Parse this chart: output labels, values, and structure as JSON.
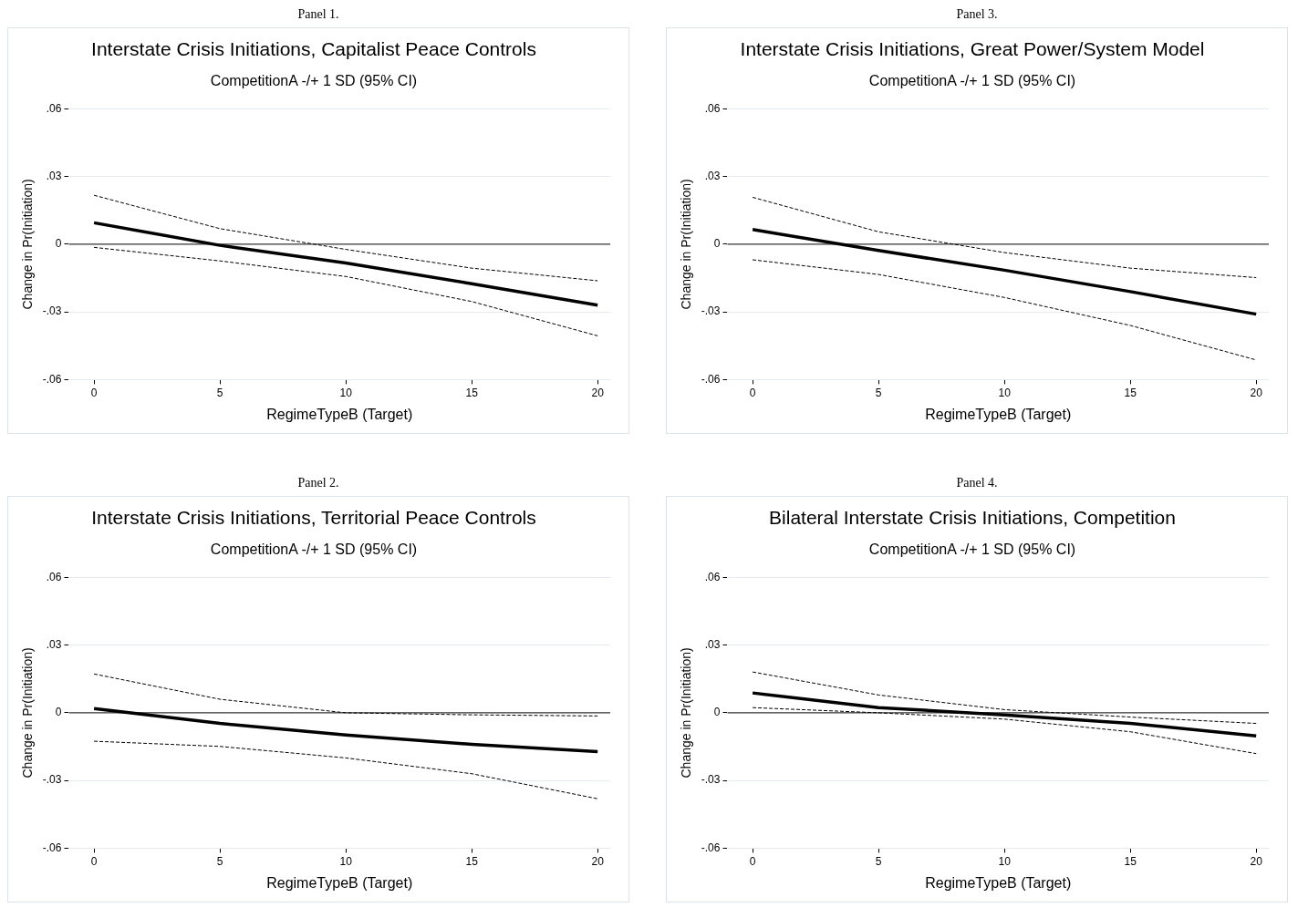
{
  "chart_data": [
    {
      "type": "line",
      "title": "Interstate Crisis Initiations, Capitalist Peace Controls",
      "subtitle": "CompetitionA -/+ 1 SD (95% CI)",
      "xlabel": "RegimeTypeB (Target)",
      "ylabel": "Change in Pr(Initiation)",
      "annotations": [
        "Panel 1."
      ],
      "x": [
        0,
        5,
        10,
        15,
        20
      ],
      "xlim": [
        -1,
        20.5
      ],
      "xticks": [
        0,
        5,
        10,
        15,
        20
      ],
      "ylim": [
        -0.06,
        0.06
      ],
      "yticks": [
        {
          "value": -0.06,
          "label": "-.06"
        },
        {
          "value": -0.03,
          "label": "-.03"
        },
        {
          "value": 0,
          "label": "0"
        },
        {
          "value": 0.03,
          "label": ".03"
        },
        {
          "value": 0.06,
          "label": ".06"
        }
      ],
      "grid": "y",
      "legend": false,
      "marker": "none",
      "ref_lines": [
        {
          "axis": "y",
          "value": 0,
          "color": "#000000"
        }
      ],
      "series": [
        {
          "color": "#000000",
          "line_style": "dashed",
          "values": [
            0.0217,
            0.0069,
            -0.0023,
            -0.0106,
            -0.0162
          ]
        },
        {
          "color": "#000000",
          "line_style": "solid",
          "values": [
            0.0095,
            -0.0005,
            -0.0083,
            -0.0175,
            -0.027
          ]
        },
        {
          "color": "#000000",
          "line_style": "dashed",
          "values": [
            -0.0014,
            -0.0074,
            -0.0143,
            -0.0254,
            -0.0406
          ]
        }
      ]
    },
    {
      "type": "line",
      "title": "Interstate Crisis Initiations, Great Power/System Model",
      "subtitle": "CompetitionA -/+ 1 SD (95% CI)",
      "xlabel": "RegimeTypeB (Target)",
      "ylabel": "Change in Pr(Initiation)",
      "annotations": [
        "Panel 3."
      ],
      "x": [
        0,
        5,
        10,
        15,
        20
      ],
      "xlim": [
        -1,
        20.5
      ],
      "xticks": [
        0,
        5,
        10,
        15,
        20
      ],
      "ylim": [
        -0.06,
        0.06
      ],
      "yticks": [
        {
          "value": -0.06,
          "label": "-.06"
        },
        {
          "value": -0.03,
          "label": "-.03"
        },
        {
          "value": 0,
          "label": "0"
        },
        {
          "value": 0.03,
          "label": ".03"
        },
        {
          "value": 0.06,
          "label": ".06"
        }
      ],
      "grid": "y",
      "legend": false,
      "marker": "none",
      "ref_lines": [
        {
          "axis": "y",
          "value": 0,
          "color": "#000000"
        }
      ],
      "series": [
        {
          "color": "#000000",
          "line_style": "dashed",
          "values": [
            0.0208,
            0.0055,
            -0.0037,
            -0.0106,
            -0.0148
          ]
        },
        {
          "color": "#000000",
          "line_style": "solid",
          "values": [
            0.0065,
            -0.0028,
            -0.0115,
            -0.021,
            -0.031
          ]
        },
        {
          "color": "#000000",
          "line_style": "dashed",
          "values": [
            -0.0069,
            -0.0134,
            -0.0236,
            -0.036,
            -0.0513
          ]
        }
      ]
    },
    {
      "type": "line",
      "title": "Interstate Crisis Initiations, Territorial Peace Controls",
      "subtitle": "CompetitionA -/+ 1 SD (95% CI)",
      "xlabel": "RegimeTypeB (Target)",
      "ylabel": "Change in Pr(Initiation)",
      "annotations": [
        "Panel 2."
      ],
      "x": [
        0,
        5,
        10,
        15,
        20
      ],
      "xlim": [
        -1,
        20.5
      ],
      "xticks": [
        0,
        5,
        10,
        15,
        20
      ],
      "ylim": [
        -0.06,
        0.06
      ],
      "yticks": [
        {
          "value": -0.06,
          "label": "-.06"
        },
        {
          "value": -0.03,
          "label": "-.03"
        },
        {
          "value": 0,
          "label": "0"
        },
        {
          "value": 0.03,
          "label": ".03"
        },
        {
          "value": 0.06,
          "label": ".06"
        }
      ],
      "grid": "y",
      "legend": false,
      "marker": "none",
      "ref_lines": [
        {
          "axis": "y",
          "value": 0,
          "color": "#000000"
        }
      ],
      "series": [
        {
          "color": "#000000",
          "line_style": "dashed",
          "values": [
            0.0172,
            0.006,
            0,
            -0.0009,
            -0.0014
          ]
        },
        {
          "color": "#000000",
          "line_style": "solid",
          "values": [
            0.0019,
            -0.0047,
            -0.0098,
            -0.014,
            -0.0172
          ]
        },
        {
          "color": "#000000",
          "line_style": "dashed",
          "values": [
            -0.0126,
            -0.0149,
            -0.02,
            -0.027,
            -0.0381
          ]
        }
      ]
    },
    {
      "type": "line",
      "title": "Bilateral Interstate Crisis Initiations, Competition",
      "subtitle": "CompetitionA -/+ 1 SD (95% CI)",
      "xlabel": "RegimeTypeB (Target)",
      "ylabel": "Change in Pr(Initiation)",
      "annotations": [
        "Panel 4."
      ],
      "x": [
        0,
        5,
        10,
        15,
        20
      ],
      "xlim": [
        -1,
        20.5
      ],
      "xticks": [
        0,
        5,
        10,
        15,
        20
      ],
      "ylim": [
        -0.06,
        0.06
      ],
      "yticks": [
        {
          "value": -0.06,
          "label": "-.06"
        },
        {
          "value": -0.03,
          "label": "-.03"
        },
        {
          "value": 0,
          "label": "0"
        },
        {
          "value": 0.03,
          "label": ".03"
        },
        {
          "value": 0.06,
          "label": ".06"
        }
      ],
      "grid": "y",
      "legend": false,
      "marker": "none",
      "ref_lines": [
        {
          "axis": "y",
          "value": 0,
          "color": "#000000"
        }
      ],
      "series": [
        {
          "color": "#000000",
          "line_style": "dashed",
          "values": [
            0.0181,
            0.0079,
            0.0014,
            -0.0019,
            -0.0047
          ]
        },
        {
          "color": "#000000",
          "line_style": "solid",
          "values": [
            0.0088,
            0.0023,
            -0.0009,
            -0.0047,
            -0.0102
          ]
        },
        {
          "color": "#000000",
          "line_style": "dashed",
          "values": [
            0.0023,
            0,
            -0.0028,
            -0.0084,
            -0.0181
          ]
        }
      ]
    }
  ]
}
